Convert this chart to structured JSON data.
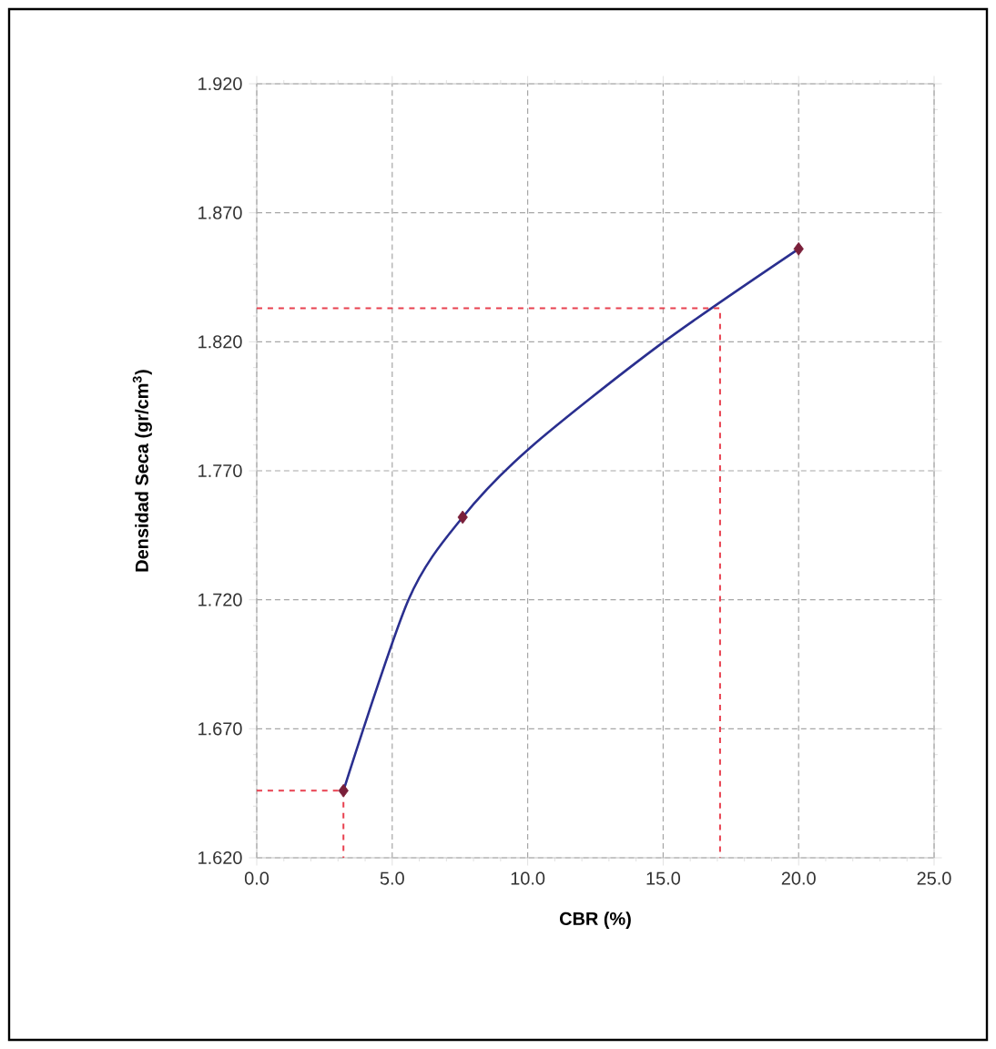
{
  "chart_data": {
    "type": "line",
    "xlabel": "CBR  (%)",
    "ylabel": "Densidad Seca (gr/cm$^{3}$)",
    "xlim": [
      0,
      25
    ],
    "xticks": [
      {
        "value": 0,
        "label": "0.0"
      },
      {
        "value": 5,
        "label": "5.0"
      },
      {
        "value": 10,
        "label": "10.0"
      },
      {
        "value": 15,
        "label": "15.0"
      },
      {
        "value": 20,
        "label": "20.0"
      },
      {
        "value": 25,
        "label": "25.0"
      }
    ],
    "ylim": [
      1.62,
      1.92
    ],
    "yticks": [
      {
        "value": 1.62,
        "label": "1.620"
      },
      {
        "value": 1.67,
        "label": "1.670"
      },
      {
        "value": 1.72,
        "label": "1.720"
      },
      {
        "value": 1.77,
        "label": "1.770"
      },
      {
        "value": 1.82,
        "label": "1.820"
      },
      {
        "value": 1.87,
        "label": "1.870"
      },
      {
        "value": 1.92,
        "label": "1.920"
      }
    ],
    "grid": true,
    "series": [
      {
        "color": "#2a2f8f",
        "marker": "none",
        "line_style": "solid",
        "x": [
          3.2,
          5.6,
          7.6,
          10.1,
          14.9,
          20.0
        ],
        "values": [
          1.646,
          1.72,
          1.752,
          1.779,
          1.819,
          1.856
        ]
      },
      {
        "type": "scatter",
        "color": "#7a1f3a",
        "marker": "diamond",
        "x": [
          3.2,
          7.6,
          20.0
        ],
        "values": [
          1.646,
          1.752,
          1.856
        ]
      },
      {
        "color": "#e8404f",
        "marker": "none",
        "line_style": "dashed",
        "x": [
          0,
          17.1,
          17.1
        ],
        "values": [
          1.833,
          1.833,
          1.62
        ]
      },
      {
        "color": "#e8404f",
        "marker": "none",
        "line_style": "dashed",
        "x": [
          0,
          3.2,
          3.2
        ],
        "values": [
          1.646,
          1.646,
          1.62
        ]
      }
    ]
  }
}
